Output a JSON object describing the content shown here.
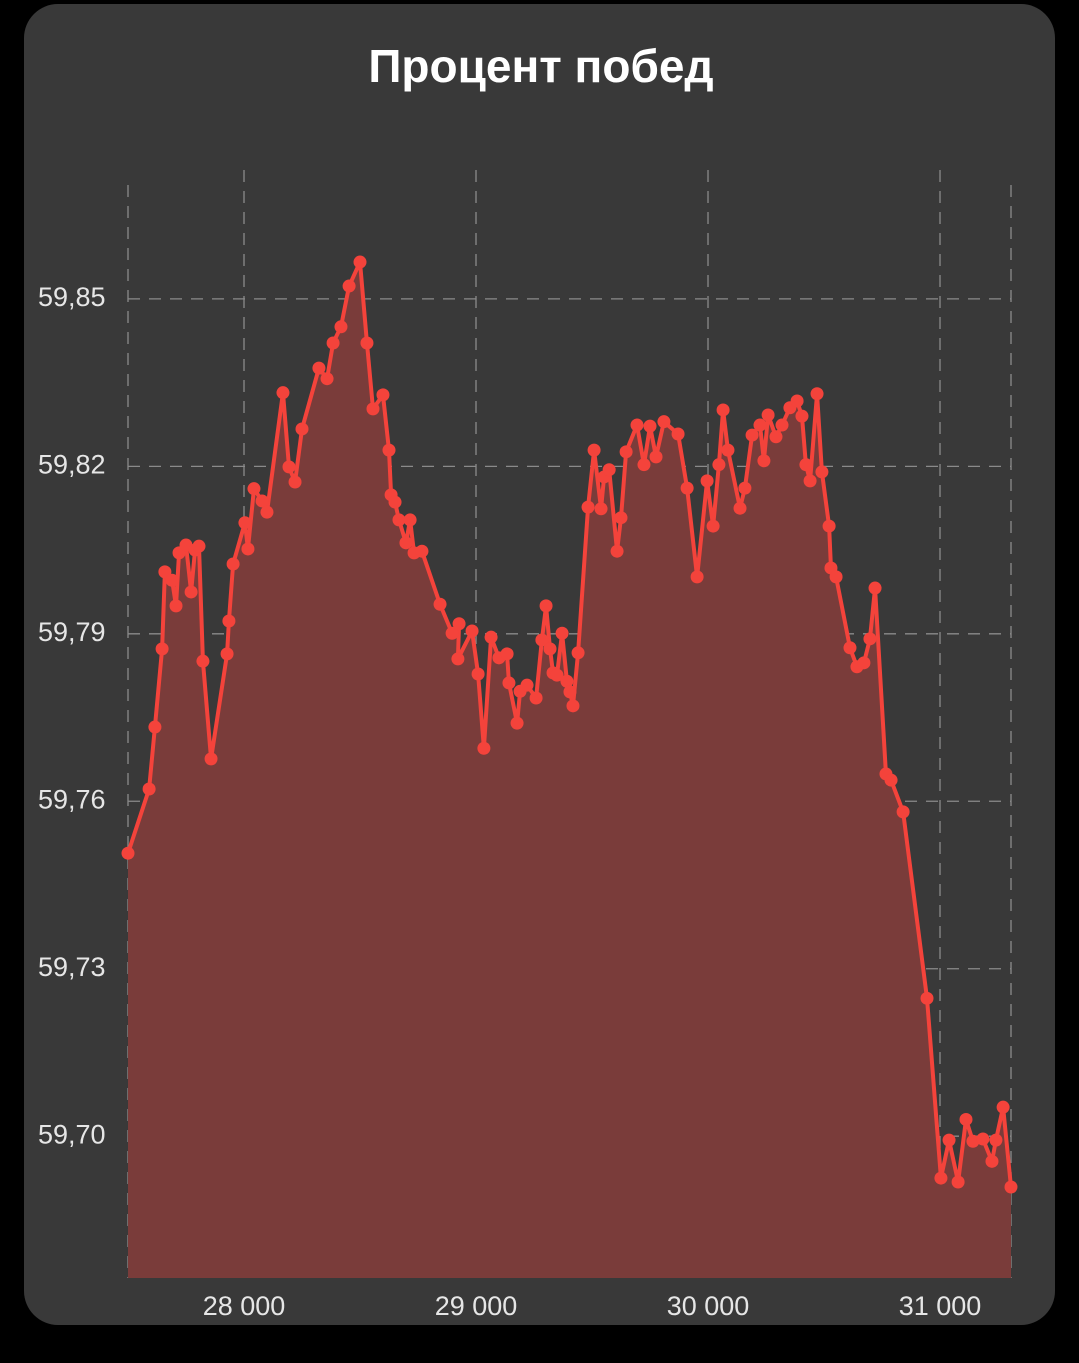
{
  "chart_data": {
    "type": "line",
    "title": "Процент побед",
    "x": [
      27500,
      27591,
      27616,
      27647,
      27659,
      27690,
      27707,
      27720,
      27750,
      27772,
      27789,
      27806,
      27823,
      27858,
      27927,
      27935,
      27953,
      28004,
      28017,
      28043,
      28078,
      28099,
      28168,
      28194,
      28220,
      28250,
      28323,
      28358,
      28384,
      28418,
      28453,
      28500,
      28530,
      28556,
      28599,
      28625,
      28634,
      28651,
      28668,
      28698,
      28716,
      28733,
      28767,
      28845,
      28897,
      28927,
      28922,
      28983,
      29009,
      29034,
      29065,
      29099,
      29134,
      29142,
      29177,
      29190,
      29220,
      29259,
      29284,
      29302,
      29319,
      29332,
      29349,
      29371,
      29392,
      29405,
      29418,
      29440,
      29483,
      29509,
      29539,
      29552,
      29574,
      29608,
      29625,
      29647,
      29694,
      29724,
      29750,
      29776,
      29810,
      29871,
      29910,
      29953,
      29996,
      30022,
      30047,
      30065,
      30086,
      30138,
      30159,
      30190,
      30224,
      30241,
      30259,
      30293,
      30319,
      30353,
      30384,
      30405,
      30422,
      30440,
      30470,
      30491,
      30522,
      30530,
      30552,
      30612,
      30642,
      30672,
      30698,
      30720,
      30767,
      30789,
      30841,
      30944,
      31004,
      31039,
      31078,
      31112,
      31142,
      31185,
      31224,
      31241,
      31272,
      31306
    ],
    "series": [
      {
        "color": "#f4433b",
        "values": [
          59.7507,
          59.7622,
          59.7733,
          59.7873,
          59.8011,
          59.7996,
          59.795,
          59.8045,
          59.8059,
          59.7975,
          59.805,
          59.8057,
          59.7851,
          59.7676,
          59.7864,
          59.7923,
          59.8025,
          59.8099,
          59.8052,
          59.816,
          59.8138,
          59.8118,
          59.8332,
          59.8199,
          59.8172,
          59.8267,
          59.8376,
          59.8357,
          59.8421,
          59.845,
          59.8523,
          59.8566,
          59.8421,
          59.8303,
          59.8328,
          59.8229,
          59.8149,
          59.8136,
          59.8104,
          59.8063,
          59.8104,
          59.8045,
          59.8048,
          59.7953,
          59.7901,
          59.7918,
          59.7855,
          59.7905,
          59.7828,
          59.7695,
          59.7894,
          59.7857,
          59.7864,
          59.7812,
          59.774,
          59.7797,
          59.7808,
          59.7785,
          59.7889,
          59.795,
          59.7873,
          59.783,
          59.7826,
          59.7901,
          59.7815,
          59.7796,
          59.7771,
          59.7866,
          59.8127,
          59.8229,
          59.8124,
          59.8181,
          59.8194,
          59.8048,
          59.8108,
          59.8226,
          59.8274,
          59.8203,
          59.8272,
          59.8217,
          59.828,
          59.8258,
          59.8161,
          59.8002,
          59.8174,
          59.8093,
          59.8203,
          59.8301,
          59.8229,
          59.8125,
          59.8161,
          59.8256,
          59.8274,
          59.821,
          59.8292,
          59.8253,
          59.8274,
          59.8305,
          59.8317,
          59.829,
          59.8203,
          59.8174,
          59.833,
          59.819,
          59.8093,
          59.8018,
          59.8002,
          59.7875,
          59.7841,
          59.7848,
          59.7891,
          59.7982,
          59.7649,
          59.7638,
          59.7581,
          59.7247,
          59.6925,
          59.6993,
          59.6918,
          59.703,
          59.6991,
          59.6995,
          59.6955,
          59.6993,
          59.7052,
          59.6909
        ]
      }
    ],
    "fill_color": "#7a3c3a",
    "xlim": [
      27500,
      31306
    ],
    "ylim": [
      59.6746,
      59.8704
    ],
    "xticks": [
      {
        "value": 28000,
        "label": "28 000"
      },
      {
        "value": 29000,
        "label": "29 000"
      },
      {
        "value": 30000,
        "label": "30 000"
      },
      {
        "value": 31000,
        "label": "31 000"
      }
    ],
    "yticks": [
      {
        "value": 59.7,
        "label": "59,70"
      },
      {
        "value": 59.73,
        "label": "59,73"
      },
      {
        "value": 59.76,
        "label": "59,76"
      },
      {
        "value": 59.79,
        "label": "59,79"
      },
      {
        "value": 59.82,
        "label": "59,82"
      },
      {
        "value": 59.85,
        "label": "59,85"
      }
    ],
    "grid": true
  }
}
